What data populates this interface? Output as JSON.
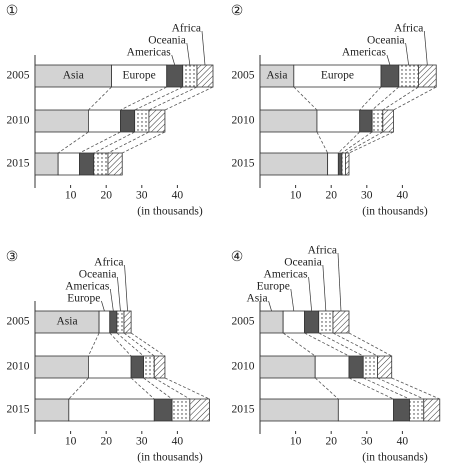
{
  "chart_data": [
    {
      "type": "stacked-bar",
      "title": "①",
      "xlabel": "(in thousands)",
      "categories": [
        "2005",
        "2010",
        "2015"
      ],
      "xlim": [
        0,
        50
      ],
      "xticks": [
        10,
        20,
        30,
        40
      ],
      "series": [
        {
          "name": "Asia",
          "color": "#d3d3d3",
          "values": [
            21.5,
            15,
            6.5
          ]
        },
        {
          "name": "Europe",
          "color": "#ffffff",
          "values": [
            15.5,
            9,
            6
          ]
        },
        {
          "name": "Americas",
          "color": "#555555",
          "values": [
            4.5,
            4,
            4
          ]
        },
        {
          "name": "Oceania",
          "color": "#ffffff",
          "pattern": "dots",
          "values": [
            4,
            4,
            4
          ]
        },
        {
          "name": "Africa",
          "color": "#ffffff",
          "pattern": "hatch",
          "values": [
            4.5,
            4.5,
            4
          ]
        }
      ]
    },
    {
      "type": "stacked-bar",
      "title": "②",
      "xlabel": "(in thousands)",
      "categories": [
        "2005",
        "2010",
        "2015"
      ],
      "xlim": [
        0,
        50
      ],
      "xticks": [
        10,
        20,
        30,
        40
      ],
      "series": [
        {
          "name": "Asia",
          "color": "#d3d3d3",
          "values": [
            9.5,
            16,
            19
          ]
        },
        {
          "name": "Europe",
          "color": "#ffffff",
          "values": [
            24.5,
            12,
            3
          ]
        },
        {
          "name": "Americas",
          "color": "#555555",
          "values": [
            5,
            3.5,
            1
          ]
        },
        {
          "name": "Oceania",
          "color": "#ffffff",
          "pattern": "dots",
          "values": [
            5.5,
            3,
            1
          ]
        },
        {
          "name": "Africa",
          "color": "#ffffff",
          "pattern": "hatch",
          "values": [
            5,
            3,
            1
          ]
        }
      ]
    },
    {
      "type": "stacked-bar",
      "title": "③",
      "xlabel": "(in thousands)",
      "categories": [
        "2005",
        "2010",
        "2015"
      ],
      "xlim": [
        0,
        50
      ],
      "xticks": [
        10,
        20,
        30,
        40
      ],
      "series": [
        {
          "name": "Asia",
          "color": "#d3d3d3",
          "values": [
            18,
            15,
            9.5
          ]
        },
        {
          "name": "Europe",
          "color": "#ffffff",
          "values": [
            3,
            12,
            24
          ]
        },
        {
          "name": "Americas",
          "color": "#555555",
          "values": [
            2,
            3.5,
            5
          ]
        },
        {
          "name": "Oceania",
          "color": "#ffffff",
          "pattern": "dots",
          "values": [
            2,
            3,
            5
          ]
        },
        {
          "name": "Africa",
          "color": "#ffffff",
          "pattern": "hatch",
          "values": [
            2,
            3,
            5.5
          ]
        }
      ]
    },
    {
      "type": "stacked-bar",
      "title": "④",
      "xlabel": "(in thousands)",
      "categories": [
        "2005",
        "2010",
        "2015"
      ],
      "xlim": [
        0,
        50
      ],
      "xticks": [
        10,
        20,
        30,
        40
      ],
      "series": [
        {
          "name": "Asia",
          "color": "#d3d3d3",
          "values": [
            6.5,
            15.5,
            22
          ]
        },
        {
          "name": "Europe",
          "color": "#ffffff",
          "values": [
            6,
            9.5,
            15.5
          ]
        },
        {
          "name": "Americas",
          "color": "#555555",
          "values": [
            4,
            4,
            4.5
          ]
        },
        {
          "name": "Oceania",
          "color": "#ffffff",
          "pattern": "dots",
          "values": [
            4,
            4,
            4
          ]
        },
        {
          "name": "Africa",
          "color": "#ffffff",
          "pattern": "hatch",
          "values": [
            4.5,
            4,
            4.5
          ]
        }
      ]
    }
  ]
}
